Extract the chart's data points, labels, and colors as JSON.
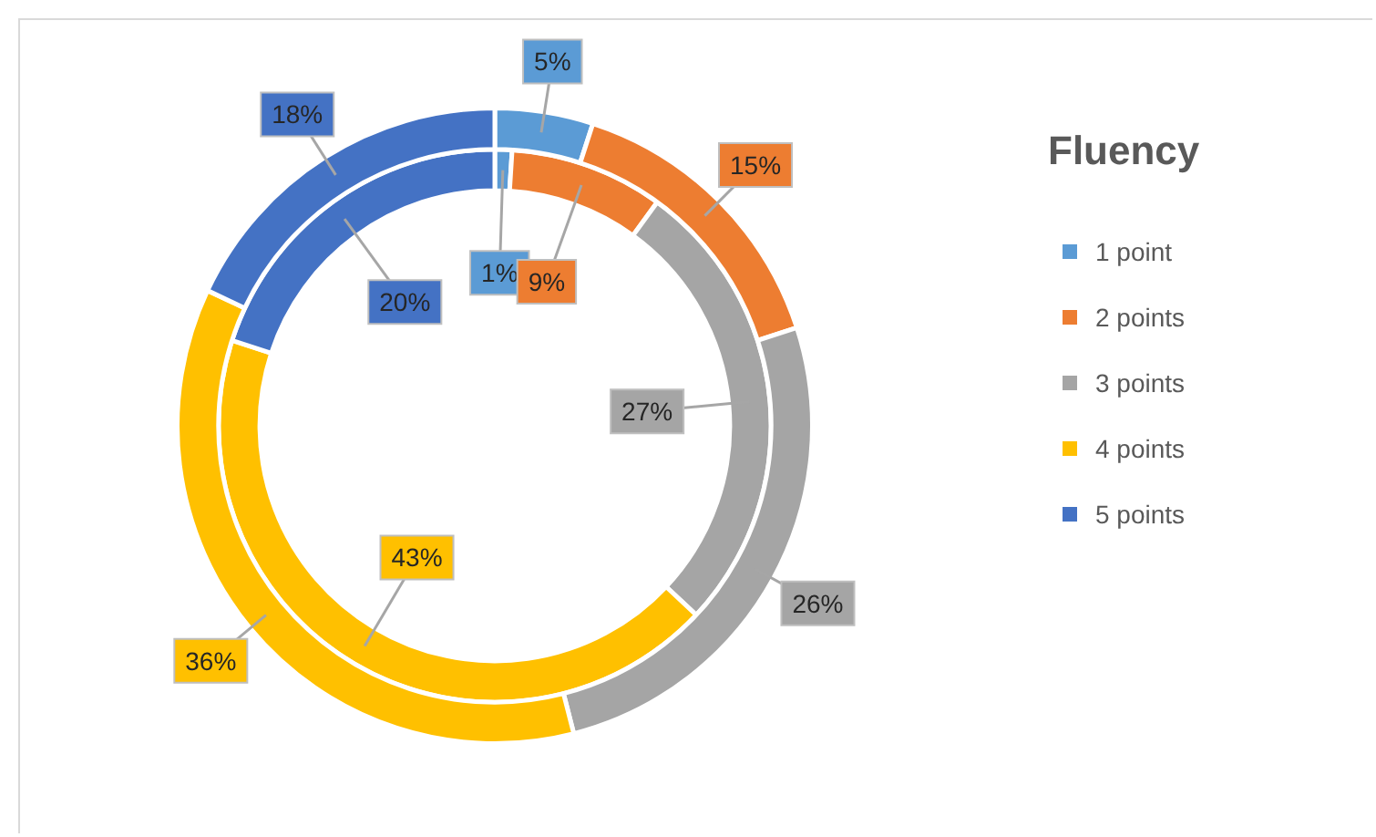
{
  "chart_data": {
    "type": "donut",
    "legend_title": "Fluency",
    "legend": "right",
    "categories": [
      "1 point",
      "2 points",
      "3 points",
      "4 points",
      "5 points"
    ],
    "colors": [
      "#5b9bd5",
      "#ed7d31",
      "#a5a5a5",
      "#ffc000",
      "#4472c4"
    ],
    "series": [
      {
        "values": [
          5,
          15,
          26,
          36,
          18
        ],
        "value_labels": [
          "5%",
          "15%",
          "26%",
          "36%",
          "18%"
        ]
      },
      {
        "values": [
          1,
          9,
          27,
          43,
          20
        ],
        "value_labels": [
          "1%",
          "9%",
          "27%",
          "43%",
          "20%"
        ]
      }
    ]
  }
}
